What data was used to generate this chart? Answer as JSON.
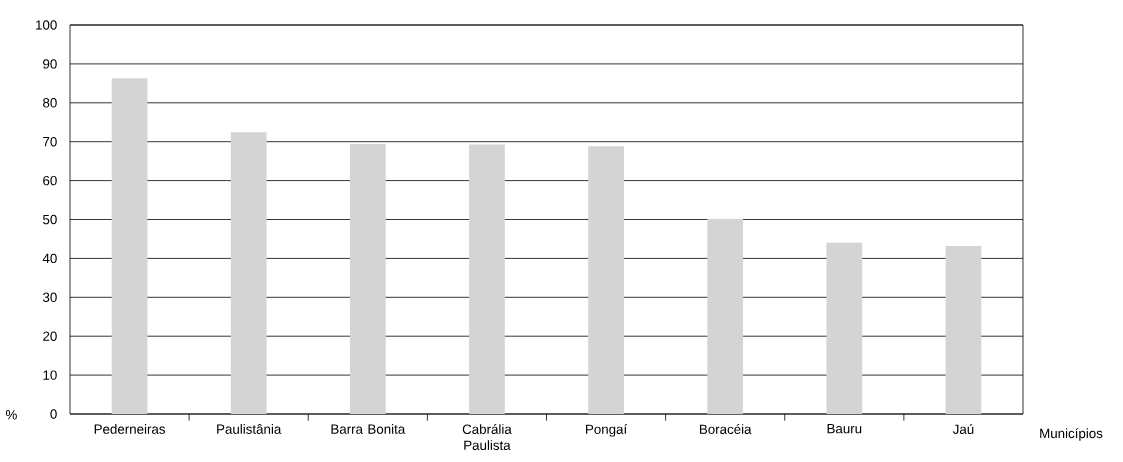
{
  "chart_data": {
    "type": "bar",
    "xlabel": "Municípios",
    "ylabel": "%",
    "categories": [
      "Pederneiras",
      "Paulistânia",
      "Barra Bonita",
      "Cabrália Paulista",
      "Pongaí",
      "Boracéia",
      "Bauru",
      "Jaú"
    ],
    "values": [
      86.3,
      72.4,
      69.4,
      69.3,
      68.8,
      50.1,
      44.0,
      43.2
    ],
    "color": "#d4d4d4",
    "ylim": [
      0,
      100
    ],
    "yticks": [
      0,
      10,
      20,
      30,
      40,
      50,
      60,
      70,
      80,
      90,
      100
    ],
    "grid": "y"
  }
}
